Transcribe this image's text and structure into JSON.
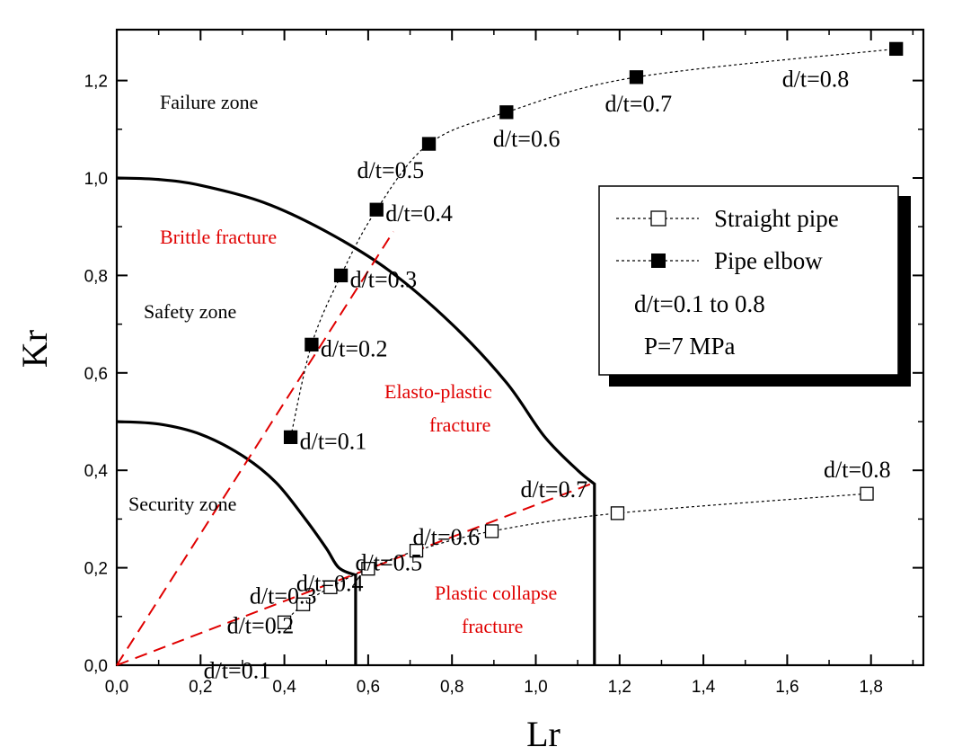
{
  "chart_data": {
    "type": "scatter",
    "xlabel": "Lr",
    "ylabel": "Kr",
    "xlim": [
      0,
      1.92
    ],
    "ylim": [
      0,
      1.29
    ],
    "grid": false,
    "x_ticks": [
      "0,0",
      "0,2",
      "0,4",
      "0,6",
      "0,8",
      "1,0",
      "1,2",
      "1,4",
      "1,6",
      "1,8"
    ],
    "y_ticks": [
      "0,0",
      "0,2",
      "0,4",
      "0,6",
      "0,8",
      "1,0",
      "1,2"
    ],
    "series": [
      {
        "name": "Straight pipe",
        "marker": "open-square",
        "color": "#000000",
        "x": [
          0.4,
          0.445,
          0.51,
          0.6,
          0.715,
          0.895,
          1.195,
          1.79
        ],
        "y": [
          0.088,
          0.125,
          0.16,
          0.198,
          0.235,
          0.275,
          0.312,
          0.352
        ],
        "labels": [
          "d/t=0.1",
          "d/t=0.2",
          "d/t=0.3",
          "d/t=0.4",
          "d/t=0.5",
          "d/t=0.6",
          "d/t=0.7",
          "d/t=0.8"
        ]
      },
      {
        "name": "Pipe elbow",
        "marker": "filled-square",
        "color": "#000000",
        "x": [
          0.415,
          0.465,
          0.535,
          0.62,
          0.745,
          0.93,
          1.24,
          1.86
        ],
        "y": [
          0.468,
          0.658,
          0.8,
          0.935,
          1.07,
          1.135,
          1.207,
          1.265
        ],
        "labels": [
          "d/t=0.1",
          "d/t=0.2",
          "d/t=0.3",
          "d/t=0.4",
          "d/t=0.5",
          "d/t=0.6",
          "d/t=0.7",
          "d/t=0.8"
        ]
      }
    ],
    "curves": [
      {
        "name": "inner-curve",
        "x": [
          0,
          0.1,
          0.2,
          0.3,
          0.38,
          0.45,
          0.5,
          0.53,
          0.57,
          0.57
        ],
        "y": [
          0.5,
          0.495,
          0.474,
          0.43,
          0.375,
          0.3,
          0.24,
          0.2,
          0.185,
          0
        ]
      },
      {
        "name": "outer-curve",
        "x": [
          0,
          0.1,
          0.2,
          0.35,
          0.5,
          0.65,
          0.8,
          0.93,
          1.02,
          1.1,
          1.14,
          1.14
        ],
        "y": [
          1.0,
          0.997,
          0.985,
          0.95,
          0.89,
          0.81,
          0.7,
          0.58,
          0.47,
          0.4,
          0.372,
          0
        ]
      }
    ],
    "dashed_lines": [
      {
        "name": "brittle-line",
        "color": "#e00000",
        "x": [
          0,
          0.66
        ],
        "y": [
          0,
          0.89
        ]
      },
      {
        "name": "plastic-line",
        "color": "#e00000",
        "x": [
          0,
          1.14
        ],
        "y": [
          0,
          0.375
        ]
      }
    ],
    "zone_labels": [
      "Failure zone",
      "Safety zone",
      "Security zone"
    ],
    "fracture_labels": [
      "Brittle fracture",
      "Elasto-plastic",
      "fracture",
      "Plastic collapse",
      "fracture"
    ],
    "legend": {
      "position": "right",
      "entries": [
        "Straight pipe",
        "Pipe elbow"
      ],
      "notes": [
        "d/t=0.1 to 0.8",
        "P=7 MPa"
      ]
    }
  }
}
